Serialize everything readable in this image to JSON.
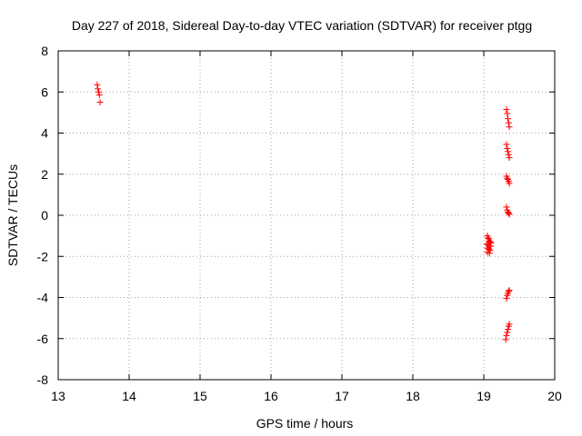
{
  "chart_data": {
    "type": "scatter",
    "title": "Day 227 of 2018, Sidereal Day-to-day VTEC variation (SDTVAR) for receiver ptgg",
    "xlabel": "GPS time / hours",
    "ylabel": "SDTVAR / TECUs",
    "xlim": [
      13,
      20
    ],
    "ylim": [
      -8,
      8
    ],
    "xticks": [
      "13",
      "14",
      "15",
      "16",
      "17",
      "18",
      "19",
      "20"
    ],
    "yticks": [
      "8",
      "6",
      "4",
      "2",
      "0",
      "-2",
      "-4",
      "-6",
      "-8"
    ],
    "grid": true,
    "marker": "plus",
    "series": [
      {
        "name": "SDTVAR",
        "color": "#ff0000",
        "points": [
          [
            13.55,
            6.35
          ],
          [
            13.56,
            6.15
          ],
          [
            13.57,
            6.0
          ],
          [
            13.58,
            5.85
          ],
          [
            13.59,
            5.5
          ],
          [
            19.32,
            5.15
          ],
          [
            19.33,
            4.95
          ],
          [
            19.34,
            4.7
          ],
          [
            19.35,
            4.5
          ],
          [
            19.36,
            4.3
          ],
          [
            19.32,
            3.45
          ],
          [
            19.33,
            3.25
          ],
          [
            19.34,
            3.1
          ],
          [
            19.35,
            2.95
          ],
          [
            19.36,
            2.8
          ],
          [
            19.32,
            1.9
          ],
          [
            19.33,
            1.8
          ],
          [
            19.34,
            1.75
          ],
          [
            19.35,
            1.65
          ],
          [
            19.36,
            1.55
          ],
          [
            19.32,
            0.4
          ],
          [
            19.33,
            0.25
          ],
          [
            19.34,
            0.15
          ],
          [
            19.35,
            0.1
          ],
          [
            19.36,
            0.05
          ],
          [
            19.05,
            -1.0
          ],
          [
            19.06,
            -1.1
          ],
          [
            19.07,
            -1.15
          ],
          [
            19.08,
            -1.25
          ],
          [
            19.09,
            -1.3
          ],
          [
            19.1,
            -1.35
          ],
          [
            19.04,
            -1.4
          ],
          [
            19.06,
            -1.45
          ],
          [
            19.08,
            -1.5
          ],
          [
            19.1,
            -1.5
          ],
          [
            19.05,
            -1.6
          ],
          [
            19.07,
            -1.65
          ],
          [
            19.09,
            -1.7
          ],
          [
            19.05,
            -1.8
          ],
          [
            19.08,
            -1.85
          ],
          [
            19.32,
            -4.05
          ],
          [
            19.33,
            -3.9
          ],
          [
            19.34,
            -3.8
          ],
          [
            19.35,
            -3.7
          ],
          [
            19.36,
            -3.65
          ],
          [
            19.31,
            -6.05
          ],
          [
            19.32,
            -5.85
          ],
          [
            19.33,
            -5.7
          ],
          [
            19.34,
            -5.55
          ],
          [
            19.35,
            -5.4
          ],
          [
            19.36,
            -5.3
          ]
        ]
      }
    ]
  }
}
